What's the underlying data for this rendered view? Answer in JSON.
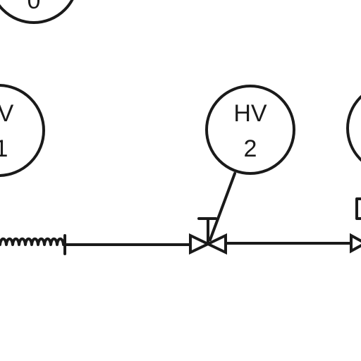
{
  "diagram": {
    "instruments": [
      {
        "id": "top-left",
        "line1": "",
        "line2": "0"
      },
      {
        "id": "hv1",
        "line1": "V",
        "line2": "1"
      },
      {
        "id": "hv2",
        "line1": "HV",
        "line2": "2"
      },
      {
        "id": "right",
        "line1": "",
        "line2": ""
      }
    ],
    "colors": {
      "ink": "#1a1a1a",
      "background": "#ffffff"
    }
  }
}
